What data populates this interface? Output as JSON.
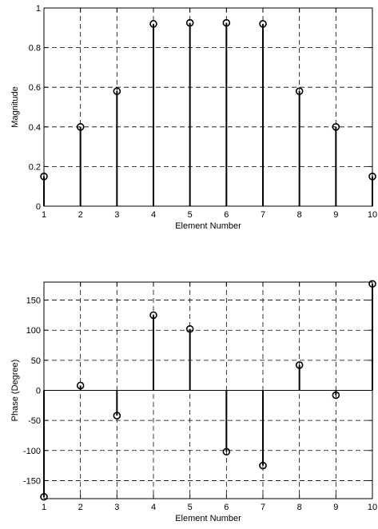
{
  "chart_data": [
    {
      "type": "stem",
      "title": "",
      "xlabel": "Element Number",
      "ylabel": "Magnitude",
      "x": [
        1,
        2,
        3,
        4,
        5,
        6,
        7,
        8,
        9,
        10
      ],
      "values": [
        0.15,
        0.4,
        0.58,
        0.92,
        0.925,
        0.925,
        0.92,
        0.58,
        0.4,
        0.15
      ],
      "xlim": [
        1,
        10
      ],
      "ylim": [
        0,
        1
      ],
      "xticks": [
        "1",
        "2",
        "3",
        "4",
        "5",
        "6",
        "7",
        "8",
        "9",
        "10"
      ],
      "yticks": [
        "0",
        "0.2",
        "0.4",
        "0.6",
        "0.8",
        "1"
      ],
      "ytick_values": [
        0,
        0.2,
        0.4,
        0.6,
        0.8,
        1
      ],
      "grid": true,
      "marker": "open-circle",
      "color": "#000000"
    },
    {
      "type": "stem",
      "title": "",
      "xlabel": "Element Number",
      "ylabel": "Phase (Degree)",
      "x": [
        1,
        2,
        3,
        4,
        5,
        6,
        7,
        8,
        9,
        10
      ],
      "values": [
        -177,
        8,
        -42,
        125,
        102,
        -102,
        -125,
        42,
        -8,
        177
      ],
      "xlim": [
        1,
        10
      ],
      "ylim": [
        -180,
        180
      ],
      "xticks": [
        "1",
        "2",
        "3",
        "4",
        "5",
        "6",
        "7",
        "8",
        "9",
        "10"
      ],
      "yticks": [
        "-150",
        "-100",
        "-50",
        "0",
        "50",
        "100",
        "150"
      ],
      "ytick_values": [
        -150,
        -100,
        -50,
        0,
        50,
        100,
        150
      ],
      "grid": true,
      "marker": "open-circle",
      "color": "#000000"
    }
  ]
}
